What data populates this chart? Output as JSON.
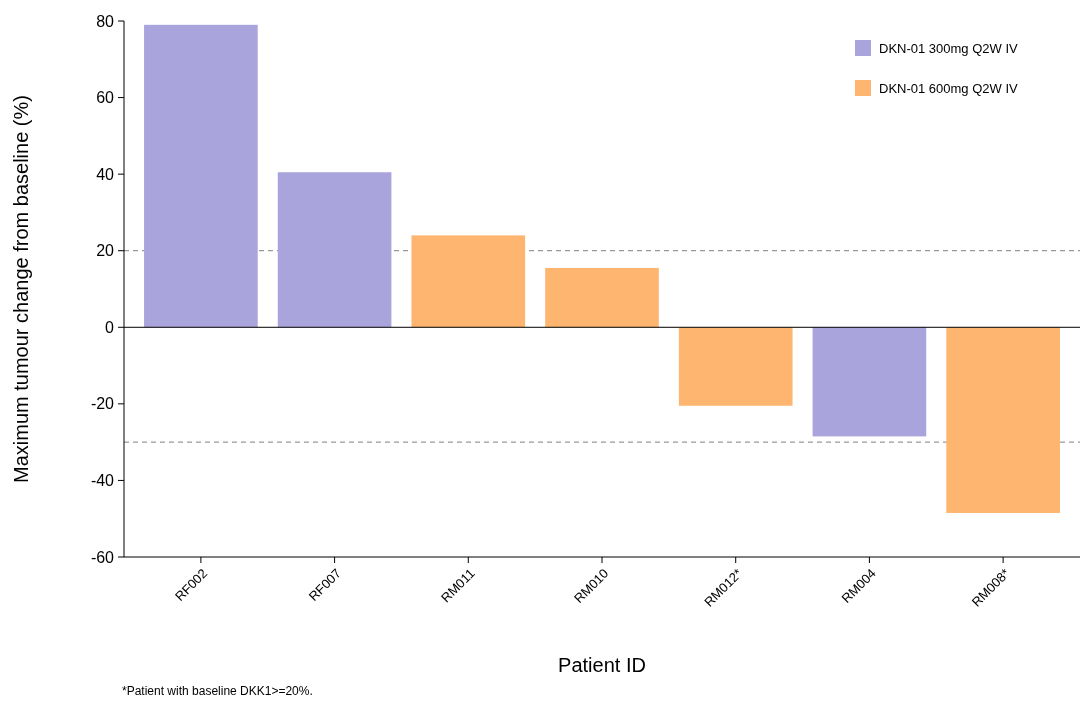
{
  "chart_data": {
    "type": "bar",
    "stacked": true,
    "xlabel": "Patient ID",
    "ylabel": "Maximum tumour change from baseline (%)",
    "categories": [
      "RF002",
      "RF007",
      "RM011",
      "RM010",
      "RM012*",
      "RM004",
      "RM008*"
    ],
    "series": [
      {
        "name": "DKN-01 300mg Q2W IV",
        "color": "#aaa4dc",
        "values": [
          79,
          40.5,
          null,
          null,
          null,
          -28.5,
          null
        ]
      },
      {
        "name": "DKN-01 600mg Q2W IV",
        "color": "#feb56f",
        "values": [
          null,
          null,
          24,
          15.5,
          -20.5,
          null,
          -48.5
        ]
      }
    ],
    "ylim": [
      -60,
      80
    ],
    "yticks": [
      -60,
      -40,
      -20,
      0,
      20,
      40,
      60,
      80
    ],
    "ref_lines": [
      {
        "axis": "y",
        "value": 20,
        "color": "#999999",
        "line_style": "dashed"
      },
      {
        "axis": "y",
        "value": -30,
        "color": "#999999",
        "line_style": "dashed"
      }
    ],
    "legend": "top right",
    "annotations": [
      "*Patient with baseline DKK1>=20%."
    ]
  }
}
